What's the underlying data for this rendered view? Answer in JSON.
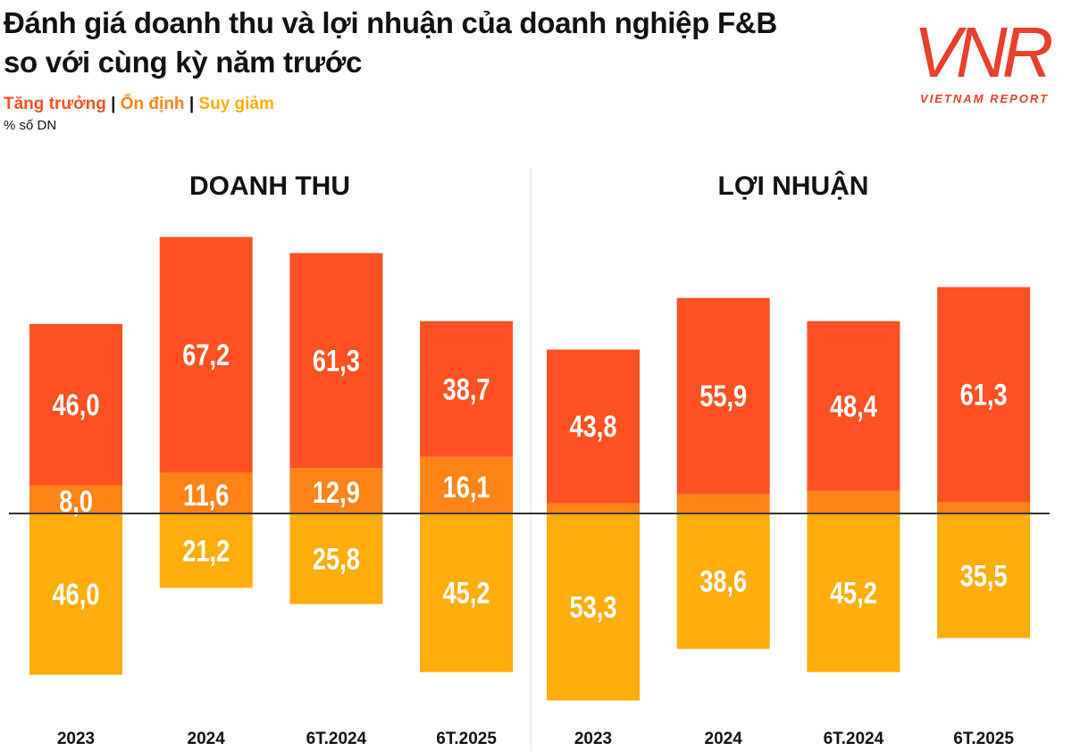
{
  "title_line1": "Đánh giá doanh thu và lợi nhuận của doanh nghiệp F&B",
  "title_line2": "so với cùng kỳ năm trước",
  "legend": {
    "growth": "Tăng trưởng",
    "stable": "Ổn định",
    "decline": "Suy giảm",
    "separator": "|"
  },
  "unit_label": "% số DN",
  "logo": {
    "mark": "VNR",
    "text": "VIETNAM REPORT",
    "color": "#E8402A"
  },
  "colors": {
    "growth": "#FF5122",
    "stable": "#FF8418",
    "decline": "#FFAD0A",
    "baseline": "#333333"
  },
  "chart_data": [
    {
      "type": "bar",
      "stacked": "diverging",
      "title": "DOANH THU",
      "categories": [
        "2023",
        "2024",
        "6T.2024",
        "6T.2025"
      ],
      "series": [
        {
          "name": "Tăng trưởng",
          "values": [
            46.0,
            67.2,
            61.3,
            38.7
          ],
          "labels": [
            "46,0",
            "67,2",
            "61,3",
            "38,7"
          ]
        },
        {
          "name": "Ổn định",
          "values": [
            8.0,
            11.6,
            12.9,
            16.1
          ],
          "labels": [
            "8,0",
            "11,6",
            "12,9",
            "16,1"
          ]
        },
        {
          "name": "Suy giảm",
          "values": [
            46.0,
            21.2,
            25.8,
            45.2
          ],
          "labels": [
            "46,0",
            "21,2",
            "25,8",
            "45,2"
          ]
        }
      ]
    },
    {
      "type": "bar",
      "stacked": "diverging",
      "title": "LỢI NHUẬN",
      "categories": [
        "2023",
        "2024",
        "6T.2024",
        "6T.2025"
      ],
      "series": [
        {
          "name": "Tăng trưởng",
          "values": [
            43.8,
            55.9,
            48.4,
            61.3
          ],
          "labels": [
            "43,8",
            "55,9",
            "48,4",
            "61,3"
          ]
        },
        {
          "name": "Ổn định",
          "values": [
            2.9,
            5.5,
            6.4,
            3.2
          ],
          "labels": [
            "",
            "",
            "",
            ""
          ]
        },
        {
          "name": "Suy giảm",
          "values": [
            53.3,
            38.6,
            45.2,
            35.5
          ],
          "labels": [
            "53,3",
            "38,6",
            "45,2",
            "35,5"
          ]
        }
      ]
    }
  ]
}
